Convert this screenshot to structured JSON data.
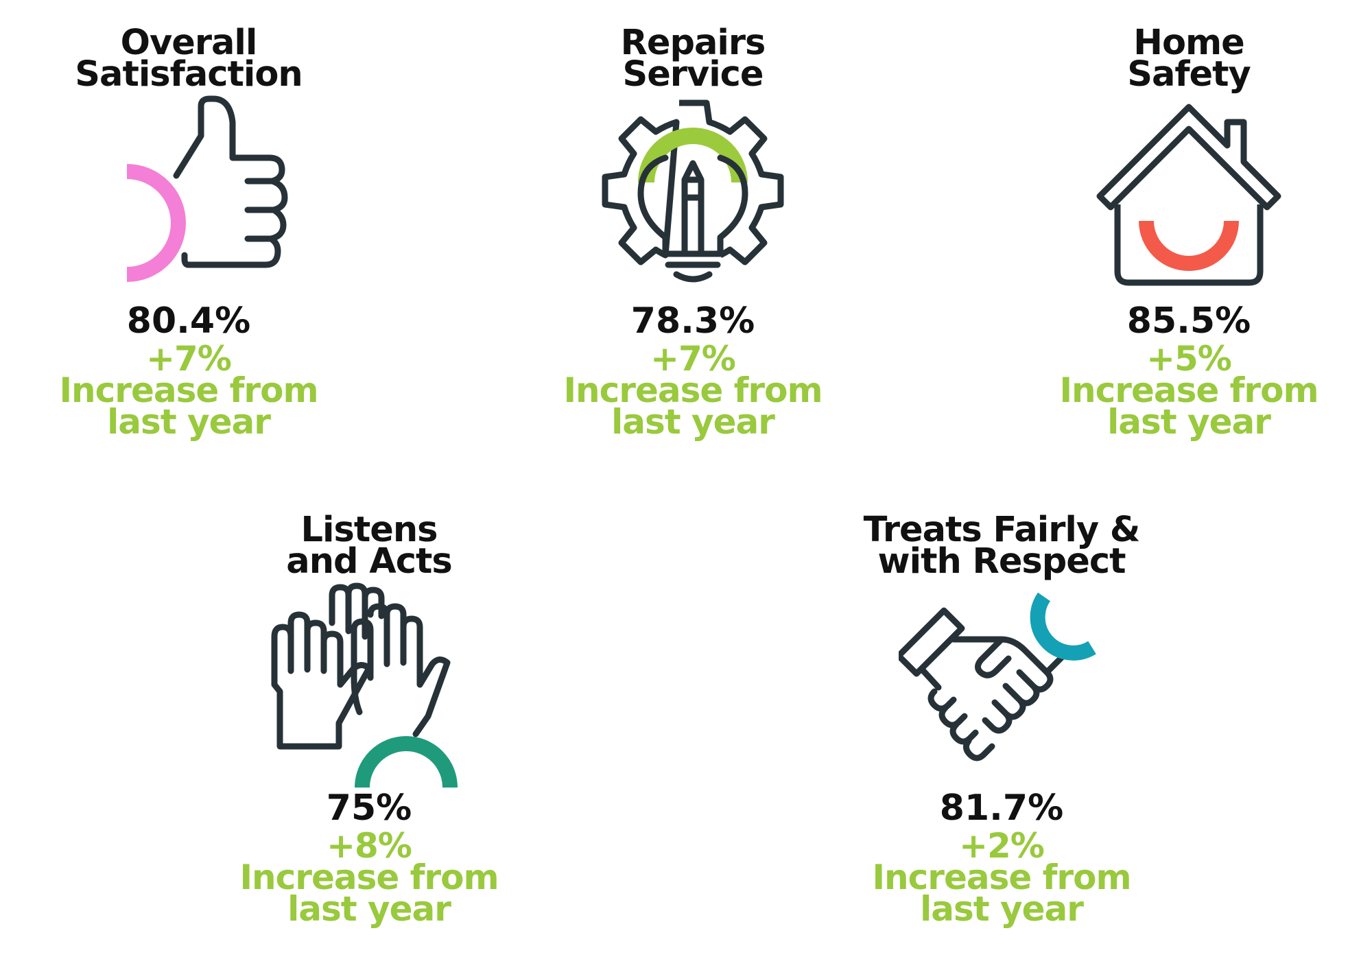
{
  "colors": {
    "text": "#111111",
    "positive": "#99c93d",
    "icon_stroke": "#263238",
    "accent_pink": "#f47fd6",
    "accent_green": "#9bcb3c",
    "accent_red": "#f35a4a",
    "accent_teal": "#1f9b7c",
    "accent_blue": "#14a1b5"
  },
  "stats": [
    {
      "title_line1": "Overall",
      "title_line2": "Satisfaction",
      "icon": "thumbs-up-icon",
      "value": "80.4%",
      "change": "+7%",
      "change_line1": "Increase from",
      "change_line2": "last year"
    },
    {
      "title_line1": "Repairs",
      "title_line2": "Service",
      "icon": "gear-lightbulb-icon",
      "value": "78.3%",
      "change": "+7%",
      "change_line1": "Increase from",
      "change_line2": "last year"
    },
    {
      "title_line1": "Home",
      "title_line2": "Safety",
      "icon": "house-icon",
      "value": "85.5%",
      "change": "+5%",
      "change_line1": "Increase from",
      "change_line2": "last year"
    },
    {
      "title_line1": "Listens",
      "title_line2": "and Acts",
      "icon": "raised-hands-icon",
      "value": "75%",
      "change": "+8%",
      "change_line1": "Increase from",
      "change_line2": "last year"
    },
    {
      "title_line1": "Treats Fairly &",
      "title_line2": "with Respect",
      "icon": "handshake-icon",
      "value": "81.7%",
      "change": "+2%",
      "change_line1": "Increase from",
      "change_line2": "last year"
    }
  ]
}
